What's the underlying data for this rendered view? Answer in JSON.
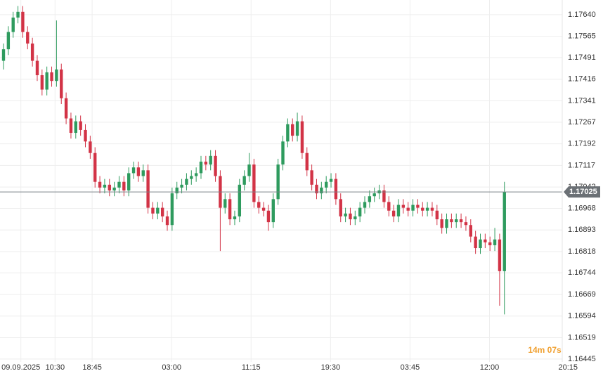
{
  "chart_data": {
    "type": "candlestick",
    "up_color": "#2e9b5e",
    "down_color": "#d23346",
    "grid": true,
    "ylim": [
      1.16435,
      1.17691
    ],
    "yticks": [
      {
        "value": 1.1764,
        "label": "1.17640"
      },
      1.17565,
      1.17491,
      1.17416,
      1.17341,
      1.17267,
      1.17192,
      1.17117,
      1.17042,
      1.16968,
      1.16893,
      1.16818,
      1.16744,
      1.16669,
      1.16594,
      1.16519,
      1.16445
    ],
    "xlim": [
      0,
      116
    ],
    "xticks": [
      {
        "value": 3.6,
        "label": "09.09.2025"
      },
      {
        "value": 10.7,
        "label": "10:30"
      },
      {
        "value": 18.4,
        "label": "18:45"
      },
      {
        "value": 34.9,
        "label": "03:00"
      },
      {
        "value": 51.4,
        "label": "11:15"
      },
      {
        "value": 67.9,
        "label": "19:30"
      },
      {
        "value": 84.4,
        "label": "03:45"
      },
      {
        "value": 100.9,
        "label": "12:00"
      },
      {
        "value": 117.2,
        "label": "20:15"
      }
    ],
    "current_price": 1.17025,
    "countdown": "14m 07s",
    "open": [
      1.1748,
      1.1752,
      1.1758,
      1.1763,
      1.1765,
      1.1758,
      1.1754,
      1.1748,
      1.1743,
      1.1738,
      1.1744,
      1.1741,
      1.1745,
      1.1735,
      1.1728,
      1.1723,
      1.1727,
      1.1724,
      1.172,
      1.1716,
      1.1706,
      1.1704,
      1.1705,
      1.1703,
      1.1704,
      1.1706,
      1.1703,
      1.1709,
      1.1711,
      1.1708,
      1.171,
      1.1697,
      1.1695,
      1.1697,
      1.1694,
      1.1691,
      1.1702,
      1.1704,
      1.1705,
      1.1707,
      1.1708,
      1.1709,
      1.1713,
      1.1712,
      1.1715,
      1.1708,
      1.1697,
      1.17,
      1.1693,
      1.1694,
      1.1705,
      1.1708,
      1.1712,
      1.1699,
      1.1697,
      1.1696,
      1.1692,
      1.17,
      1.1712,
      1.172,
      1.1726,
      1.1722,
      1.1727,
      1.1716,
      1.171,
      1.1705,
      1.1702,
      1.1704,
      1.1706,
      1.1707,
      1.17,
      1.1694,
      1.1695,
      1.1693,
      1.1694,
      1.1697,
      1.1699,
      1.1701,
      1.1702,
      1.1703,
      1.1699,
      1.1696,
      1.1694,
      1.1698,
      1.1697,
      1.1696,
      1.1698,
      1.1697,
      1.1696,
      1.1697,
      1.1696,
      1.1693,
      1.169,
      1.1693,
      1.1692,
      1.1693,
      1.1692,
      1.1691,
      1.1687,
      1.1683,
      1.1686,
      1.1685,
      1.1684,
      1.1686,
      1.1675
    ],
    "high": [
      1.1754,
      1.176,
      1.1765,
      1.1767,
      1.1767,
      1.176,
      1.1756,
      1.175,
      1.1745,
      1.1746,
      1.1746,
      1.1762,
      1.1747,
      1.1737,
      1.173,
      1.1729,
      1.1729,
      1.1726,
      1.1722,
      1.1718,
      1.1708,
      1.1707,
      1.1707,
      1.1706,
      1.1708,
      1.1708,
      1.1711,
      1.1713,
      1.1713,
      1.1712,
      1.1712,
      1.1699,
      1.1699,
      1.1699,
      1.1696,
      1.1704,
      1.1706,
      1.1707,
      1.1709,
      1.171,
      1.1711,
      1.1715,
      1.1715,
      1.1717,
      1.1717,
      1.171,
      1.1702,
      1.1702,
      1.1696,
      1.1707,
      1.171,
      1.1716,
      1.1714,
      1.1701,
      1.1699,
      1.1698,
      1.1702,
      1.1714,
      1.1722,
      1.1728,
      1.1728,
      1.173,
      1.1729,
      1.1718,
      1.1712,
      1.1707,
      1.1706,
      1.1708,
      1.1709,
      1.1709,
      1.1702,
      1.1697,
      1.1697,
      1.1696,
      1.1699,
      1.1701,
      1.1703,
      1.1704,
      1.1705,
      1.1705,
      1.1701,
      1.1698,
      1.17,
      1.17,
      1.1699,
      1.17,
      1.17,
      1.1699,
      1.1699,
      1.1699,
      1.1698,
      1.1695,
      1.1695,
      1.1695,
      1.1695,
      1.1695,
      1.1694,
      1.1693,
      1.1689,
      1.1688,
      1.1688,
      1.1687,
      1.169,
      1.1688,
      1.1706
    ],
    "low": [
      1.1745,
      1.175,
      1.1756,
      1.1761,
      1.1756,
      1.1752,
      1.1746,
      1.1741,
      1.1736,
      1.1736,
      1.1739,
      1.1739,
      1.1733,
      1.1726,
      1.1721,
      1.1721,
      1.1722,
      1.1718,
      1.1714,
      1.1704,
      1.1702,
      1.1702,
      1.1701,
      1.1701,
      1.1702,
      1.1701,
      1.1701,
      1.1707,
      1.1706,
      1.1706,
      1.1695,
      1.1693,
      1.1693,
      1.1692,
      1.1689,
      1.1689,
      1.17,
      1.1702,
      1.1703,
      1.1705,
      1.1706,
      1.1707,
      1.171,
      1.171,
      1.1706,
      1.1682,
      1.1695,
      1.1691,
      1.1691,
      1.1692,
      1.1703,
      1.1706,
      1.1697,
      1.1695,
      1.1694,
      1.1689,
      1.169,
      1.1698,
      1.171,
      1.1718,
      1.172,
      1.172,
      1.1714,
      1.1708,
      1.1703,
      1.17,
      1.17,
      1.1702,
      1.1704,
      1.1698,
      1.1692,
      1.1692,
      1.1691,
      1.1691,
      1.1692,
      1.1695,
      1.1697,
      1.1699,
      1.17,
      1.1697,
      1.1694,
      1.1692,
      1.1692,
      1.1695,
      1.1694,
      1.1694,
      1.1695,
      1.1694,
      1.1694,
      1.1694,
      1.1691,
      1.1688,
      1.1688,
      1.169,
      1.169,
      1.169,
      1.1689,
      1.1685,
      1.1681,
      1.1681,
      1.1683,
      1.1682,
      1.1682,
      1.1663,
      1.166
    ],
    "close": [
      1.1752,
      1.1758,
      1.1763,
      1.1765,
      1.1758,
      1.1754,
      1.1748,
      1.1743,
      1.1738,
      1.1744,
      1.1741,
      1.1745,
      1.1735,
      1.1728,
      1.1723,
      1.1727,
      1.1724,
      1.172,
      1.1716,
      1.1706,
      1.1704,
      1.1705,
      1.1703,
      1.1704,
      1.1706,
      1.1703,
      1.1709,
      1.1711,
      1.1708,
      1.171,
      1.1697,
      1.1695,
      1.1697,
      1.1694,
      1.1691,
      1.1702,
      1.1704,
      1.1705,
      1.1707,
      1.1708,
      1.1709,
      1.1713,
      1.1712,
      1.1715,
      1.1708,
      1.1697,
      1.17,
      1.1693,
      1.1694,
      1.1705,
      1.1708,
      1.1712,
      1.1699,
      1.1697,
      1.1696,
      1.1692,
      1.17,
      1.1712,
      1.172,
      1.1726,
      1.1722,
      1.1727,
      1.1716,
      1.171,
      1.1705,
      1.1702,
      1.1704,
      1.1706,
      1.1707,
      1.17,
      1.1694,
      1.1695,
      1.1693,
      1.1694,
      1.1697,
      1.1699,
      1.1701,
      1.1702,
      1.1703,
      1.1699,
      1.1696,
      1.1694,
      1.1698,
      1.1697,
      1.1696,
      1.1698,
      1.1697,
      1.1696,
      1.1697,
      1.1696,
      1.1693,
      1.169,
      1.1693,
      1.1692,
      1.1693,
      1.1692,
      1.1691,
      1.1687,
      1.1683,
      1.1686,
      1.1685,
      1.1684,
      1.1686,
      1.1675,
      1.17025
    ]
  }
}
